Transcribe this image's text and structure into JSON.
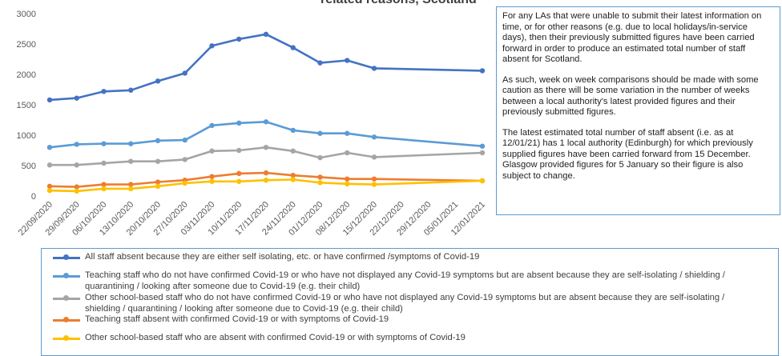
{
  "chart_data": {
    "type": "line",
    "title": "related reasons, Scotland",
    "categories": [
      "22/09/2020",
      "29/09/2020",
      "06/10/2020",
      "13/10/2020",
      "20/10/2020",
      "27/10/2020",
      "03/11/2020",
      "10/11/2020",
      "17/11/2020",
      "24/11/2020",
      "01/12/2020",
      "08/12/2020",
      "15/12/2020",
      "22/12/2020",
      "29/12/2020",
      "05/01/2021",
      "12/01/2021"
    ],
    "y_ticks": [
      "0",
      "500",
      "1000",
      "1500",
      "2000",
      "2500",
      "3000"
    ],
    "ylim": [
      0,
      3000
    ],
    "grid": false,
    "legend_position": "bottom",
    "series": [
      {
        "name": "All staff absent because they are either self isolating, etc. or have confirmed /symptoms of Covid-19",
        "color": "#4472c4",
        "values": [
          1580,
          1610,
          1720,
          1740,
          1890,
          2020,
          2470,
          2580,
          2660,
          2440,
          2190,
          2230,
          2100,
          null,
          null,
          null,
          2060
        ]
      },
      {
        "name": "Teaching staff who do not have confirmed Covid-19 or who have not displayed any Covid-19 symptoms but are absent because they are self-isolating / shielding / quarantining / looking after someone due to Covid-19 (e.g. their child)",
        "color": "#5b9bd5",
        "values": [
          800,
          850,
          860,
          860,
          910,
          920,
          1160,
          1200,
          1220,
          1080,
          1030,
          1030,
          970,
          null,
          null,
          null,
          820
        ]
      },
      {
        "name": "Other school-based staff who do not have confirmed Covid-19 or who have not displayed any Covid-19 symptoms but are absent because they are self-isolating / shielding / quarantining / looking after someone due to Covid-19 (e.g. their child)",
        "color": "#a5a5a5",
        "values": [
          510,
          510,
          540,
          570,
          570,
          600,
          740,
          750,
          800,
          740,
          630,
          710,
          640,
          null,
          null,
          null,
          710
        ]
      },
      {
        "name": "Teaching staff absent with confirmed Covid-19 or with symptoms of Covid-19",
        "color": "#ed7d31",
        "values": [
          160,
          150,
          190,
          190,
          230,
          260,
          320,
          370,
          380,
          340,
          310,
          280,
          280,
          null,
          null,
          null,
          250
        ]
      },
      {
        "name": "Other school-based staff who are absent with confirmed Covid-19 or with symptoms of Covid-19",
        "color": "#ffc000",
        "values": [
          90,
          80,
          120,
          120,
          160,
          210,
          240,
          240,
          260,
          270,
          220,
          200,
          190,
          null,
          null,
          null,
          250
        ]
      }
    ],
    "annotation": {
      "paragraphs": [
        "For any LAs that were unable to submit their latest information on time, or for other reasons (e.g. due to local holidays/in-service days), then their previously submitted figures have been carried forward in order to produce an estimated total number of staff absent for Scotland.",
        "As such, week on week comparisons should be made with some caution as there will be some variation in the number of weeks between a local authority's latest provided figures and their previously submitted figures.",
        "The latest estimated total number of staff absent (i.e. as at 12/01/21) has 1 local authority (Edinburgh) for which previously supplied figures have been carried forward from 15 December.  Glasgow provided figures for 5 January so their figure is also subject to change."
      ]
    }
  }
}
